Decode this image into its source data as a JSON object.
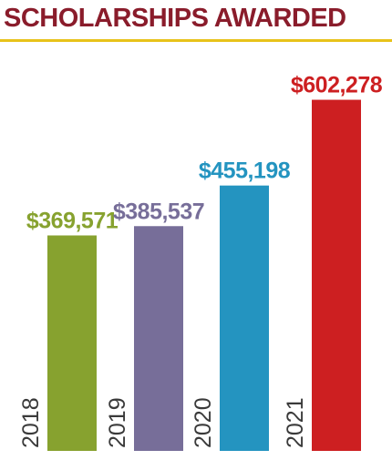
{
  "title": "SCHOLARSHIPS AWARDED",
  "colors": {
    "title": "#8a1c2b",
    "rule": "#e8c21a",
    "series": [
      "#87a22f",
      "#776e99",
      "#2494c0",
      "#cd1f21"
    ]
  },
  "chart_data": {
    "type": "bar",
    "title": "SCHOLARSHIPS AWARDED",
    "categories": [
      "2018",
      "2019",
      "2020",
      "2021"
    ],
    "values": [
      369571,
      385537,
      455198,
      602278
    ],
    "value_labels": [
      "$369,571",
      "$385,537",
      "$455,198",
      "$602,278"
    ],
    "xlabel": "",
    "ylabel": "",
    "grid": false,
    "legend": "none"
  }
}
